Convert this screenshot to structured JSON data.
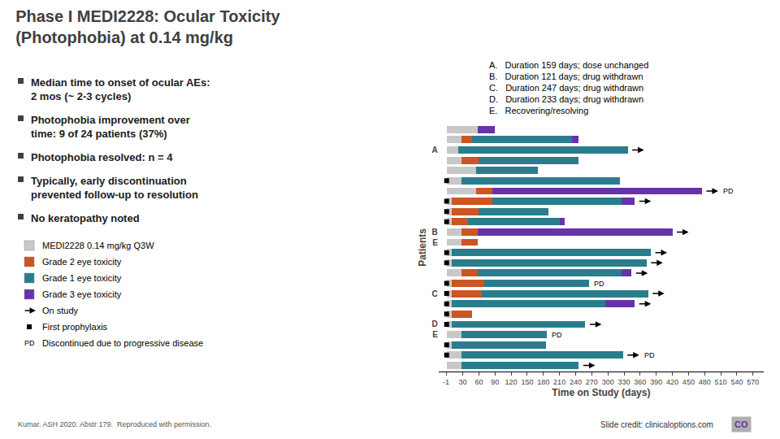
{
  "chart_data": {
    "type": "bar",
    "orientation": "horizontal",
    "stacked": true,
    "title": "Phase I MEDI2228: Ocular Toxicity\n(Photophobia) at 0.14 mg/kg",
    "xlabel": "Time on Study (days)",
    "ylabel": "Patients",
    "categories": [
      null,
      null,
      "A",
      null,
      null,
      null,
      null,
      null,
      null,
      null,
      "B",
      "E",
      null,
      null,
      null,
      null,
      "C",
      null,
      null,
      "D",
      "E",
      null,
      null,
      null
    ],
    "series": [
      {
        "name": "MEDI2228 0.14 mg/kg Q3W",
        "color": "#c8c8c8",
        "values": [
          58,
          28,
          22,
          28,
          55,
          28,
          55,
          10,
          10,
          10,
          28,
          28,
          10,
          10,
          28,
          10,
          10,
          10,
          10,
          10,
          28,
          10,
          28,
          28
        ]
      },
      {
        "name": "Grade 2 eye toxicity",
        "color": "#cc5522",
        "values": [
          0,
          20,
          0,
          32,
          0,
          0,
          30,
          75,
          50,
          30,
          30,
          30,
          0,
          0,
          28,
          60,
          55,
          0,
          38,
          0,
          0,
          0,
          0,
          0
        ]
      },
      {
        "name": "Grade 1 eye toxicity",
        "color": "#2a7d8c",
        "values": [
          0,
          185,
          315,
          185,
          115,
          295,
          0,
          240,
          130,
          170,
          0,
          0,
          370,
          362,
          270,
          195,
          310,
          285,
          0,
          248,
          158,
          175,
          300,
          218
        ]
      },
      {
        "name": "Grade 3 eye toxicity",
        "color": "#6633aa",
        "values": [
          32,
          12,
          0,
          0,
          0,
          0,
          390,
          25,
          0,
          10,
          362,
          0,
          0,
          0,
          18,
          0,
          0,
          55,
          0,
          0,
          0,
          0,
          0,
          0
        ]
      }
    ],
    "xlim": [
      -15,
      590
    ],
    "xticks": [
      -1,
      30,
      60,
      90,
      120,
      150,
      180,
      210,
      240,
      270,
      300,
      330,
      360,
      390,
      420,
      450,
      480,
      510,
      540,
      570
    ],
    "grid": false,
    "row_marks": [
      {
        "name": "On study",
        "marker": "arrow",
        "rows": [
          false,
          false,
          true,
          false,
          false,
          false,
          true,
          true,
          false,
          false,
          true,
          false,
          true,
          true,
          true,
          false,
          true,
          true,
          false,
          true,
          false,
          false,
          true,
          true
        ]
      },
      {
        "name": "First prophylaxis",
        "marker": "square",
        "x": 0,
        "rows": [
          false,
          false,
          false,
          false,
          false,
          true,
          false,
          true,
          true,
          true,
          false,
          false,
          true,
          true,
          false,
          true,
          true,
          true,
          true,
          true,
          false,
          true,
          true,
          false
        ]
      },
      {
        "name": "Discontinued due to progressive disease",
        "text": "PD",
        "rows": [
          false,
          false,
          false,
          false,
          false,
          false,
          true,
          false,
          false,
          false,
          false,
          false,
          false,
          false,
          false,
          true,
          false,
          false,
          false,
          false,
          true,
          false,
          true,
          false
        ]
      }
    ],
    "notes": [
      "A.   Duration 159 days; dose unchanged",
      "B.   Duration 121 days; drug withdrawn",
      "C.   Duration 247 days; drug withdrawn",
      "D.   Duration 233 days; drug withdrawn",
      "E.   Recovering/resolving"
    ],
    "bullets": [
      "Median time to onset of ocular AEs:\n2 mos (~ 2-3 cycles)",
      "Photophobia improvement over\ntime: 9 of 24 patients (37%)",
      "Photophobia resolved: n = 4",
      "Typically, early discontinuation\nprevented follow-up to resolution",
      "No keratopathy noted"
    ],
    "footer_left": "Kumar. ASH 2020. Abstr 179.  Reproduced with permission.",
    "footer_right": "Slide credit: clinicaloptions.com",
    "logo": "CO"
  }
}
